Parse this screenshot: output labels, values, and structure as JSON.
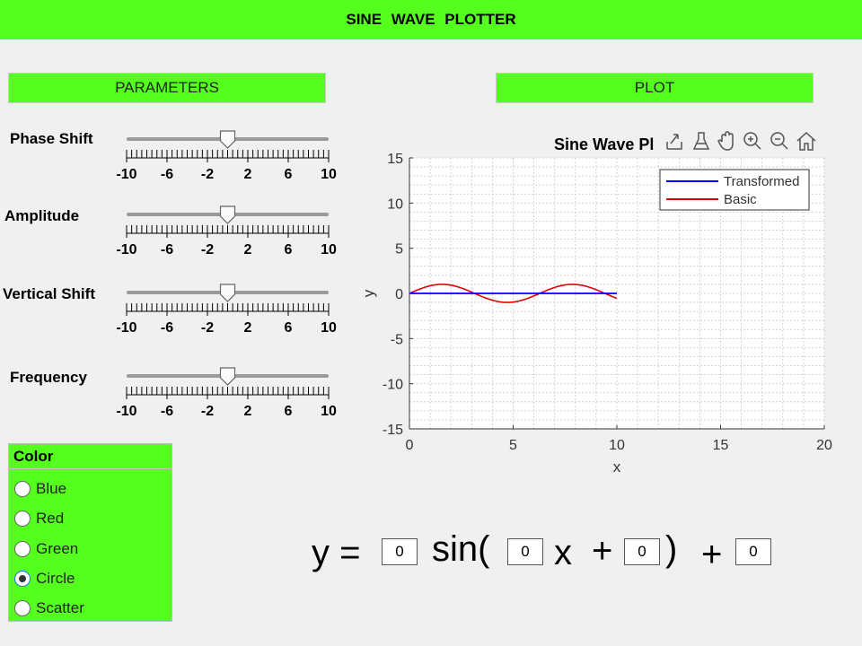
{
  "app": {
    "title": "SINE  WAVE  PLOTTER"
  },
  "panels": {
    "parameters": "PARAMETERS",
    "plot": "PLOT"
  },
  "sliders": [
    {
      "name": "phase-shift",
      "label": "Phase Shift",
      "value": 0
    },
    {
      "name": "amplitude",
      "label": "Amplitude",
      "value": 0
    },
    {
      "name": "vertical-shift",
      "label": "Vertical Shift",
      "value": 0
    },
    {
      "name": "frequency",
      "label": "Frequency",
      "value": 0
    }
  ],
  "slider_ticks": [
    "-10",
    "-6",
    "-2",
    "2",
    "6",
    "10"
  ],
  "slider_range": [
    -10,
    10
  ],
  "color_group": {
    "title": "Color",
    "options": [
      "Blue",
      "Red",
      "Green",
      "Circle",
      "Scatter"
    ],
    "selected": "Circle"
  },
  "toolbar_icons": [
    "export-icon",
    "brush-icon",
    "pan-icon",
    "zoom-in-icon",
    "zoom-out-icon",
    "home-icon"
  ],
  "equation": {
    "y_eq": "y =",
    "sin_open": "sin(",
    "x": "x",
    "plus1": "+",
    "close": ")",
    "plus2": "+",
    "amplitude_value": "0",
    "frequency_value": "0",
    "phase_value": "0",
    "shift_value": "0"
  },
  "chart_data": {
    "type": "line",
    "title": "Sine Wave Pl",
    "xlabel": "x",
    "ylabel": "y",
    "xlim": [
      0,
      20
    ],
    "ylim": [
      -15,
      15
    ],
    "xticks": [
      "0",
      "5",
      "10",
      "15",
      "20"
    ],
    "yticks": [
      "15",
      "10",
      "5",
      "0",
      "-5",
      "-10",
      "-15"
    ],
    "grid": true,
    "legend_position": "top-right",
    "series": [
      {
        "name": "Transformed",
        "color": "#0000ff",
        "x": [
          0,
          10
        ],
        "y": [
          0,
          0
        ]
      },
      {
        "name": "Basic",
        "color": "#e00000",
        "function": "sin",
        "x_range": [
          0,
          10
        ],
        "amplitude": 1
      }
    ]
  }
}
